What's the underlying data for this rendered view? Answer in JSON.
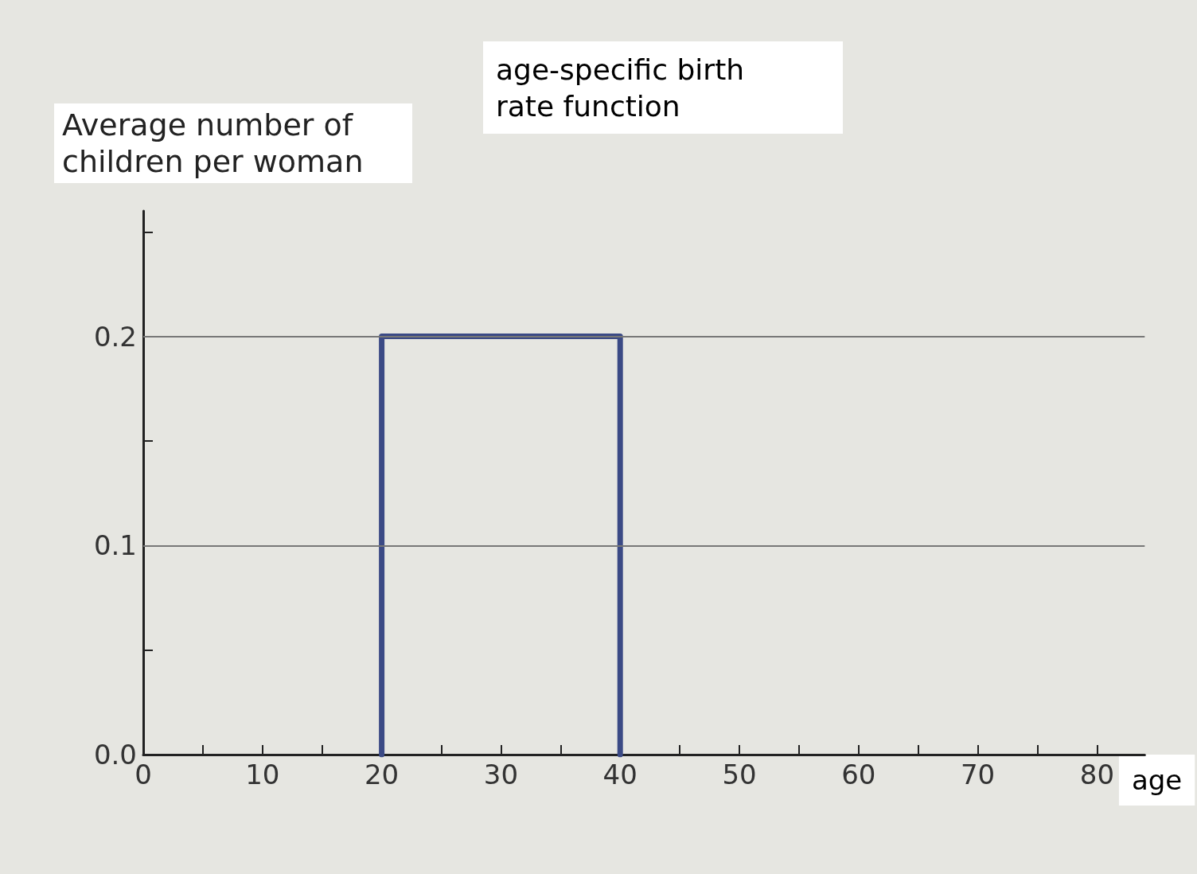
{
  "chart_data": {
    "type": "line",
    "title": "age-specific birth rate function",
    "xlabel": "age",
    "ylabel": "Average number of children per woman",
    "series": [
      {
        "color": "#3b4a85",
        "x": [
          20,
          20,
          40,
          40
        ],
        "values": [
          0,
          0.2,
          0.2,
          0
        ]
      }
    ],
    "xlim": [
      0,
      84
    ],
    "xticks": [
      0,
      {
        "value": 5,
        "label": null
      },
      10,
      {
        "value": 15,
        "label": null
      },
      20,
      {
        "value": 25,
        "label": null
      },
      30,
      {
        "value": 35,
        "label": null
      },
      40,
      {
        "value": 45,
        "label": null
      },
      50,
      {
        "value": 55,
        "label": null
      },
      60,
      {
        "value": 65,
        "label": null
      },
      70,
      {
        "value": 75,
        "label": null
      },
      80
    ],
    "ylim": [
      0,
      0.26
    ],
    "yticks": [
      {
        "value": 0,
        "label": "0.0"
      },
      {
        "value": 0.05,
        "label": null
      },
      0.1,
      {
        "value": 0.15,
        "label": null
      },
      0.2,
      {
        "value": 0.25,
        "label": null
      }
    ],
    "grid": "y",
    "marker": "none",
    "line_style": "solid"
  }
}
